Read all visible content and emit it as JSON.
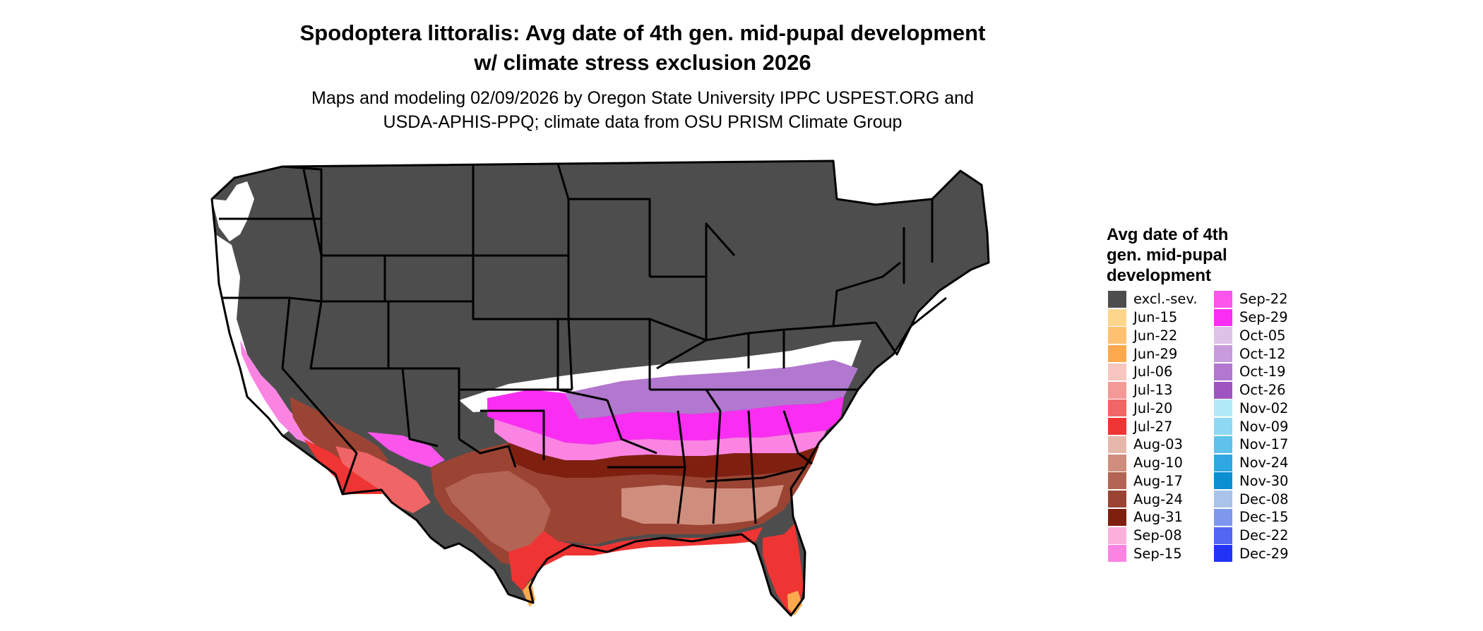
{
  "header": {
    "title_line1": "Spodoptera littoralis: Avg date of 4th gen. mid-pupal development",
    "title_line2": "w/ climate stress exclusion 2026",
    "subtitle_line1": "Maps and modeling 02/09/2026 by Oregon State University IPPC USPEST.ORG and",
    "subtitle_line2": "USDA-APHIS-PPQ; climate data from OSU PRISM Climate Group"
  },
  "legend": {
    "title_line1": "Avg date of 4th",
    "title_line2": "gen. mid-pupal",
    "title_line3": "development",
    "col1": [
      {
        "label": "excl.-sev.",
        "color": "#4d4d4d"
      },
      {
        "label": "Jun-15",
        "color": "#fdd68c"
      },
      {
        "label": "Jun-22",
        "color": "#fdc170"
      },
      {
        "label": "Jun-29",
        "color": "#fca94e"
      },
      {
        "label": "Jul-06",
        "color": "#f8c6c0"
      },
      {
        "label": "Jul-13",
        "color": "#f39a98"
      },
      {
        "label": "Jul-20",
        "color": "#f06565"
      },
      {
        "label": "Jul-27",
        "color": "#ef3434"
      },
      {
        "label": "Aug-03",
        "color": "#e6b8ab"
      },
      {
        "label": "Aug-10",
        "color": "#cf8d7d"
      },
      {
        "label": "Aug-17",
        "color": "#b36454"
      },
      {
        "label": "Aug-24",
        "color": "#9b4433"
      },
      {
        "label": "Aug-31",
        "color": "#7f1f10"
      },
      {
        "label": "Sep-08",
        "color": "#fbb0dc"
      },
      {
        "label": "Sep-15",
        "color": "#fb84e2"
      }
    ],
    "col2": [
      {
        "label": "Sep-22",
        "color": "#fb55ec"
      },
      {
        "label": "Sep-29",
        "color": "#fa2ef2"
      },
      {
        "label": "Oct-05",
        "color": "#dfc2e8"
      },
      {
        "label": "Oct-12",
        "color": "#c89bdc"
      },
      {
        "label": "Oct-19",
        "color": "#b277cf"
      },
      {
        "label": "Oct-26",
        "color": "#9f55c1"
      },
      {
        "label": "Nov-02",
        "color": "#b3eaf9"
      },
      {
        "label": "Nov-09",
        "color": "#8fd8f3"
      },
      {
        "label": "Nov-17",
        "color": "#5fc2ec"
      },
      {
        "label": "Nov-24",
        "color": "#2fa7e0"
      },
      {
        "label": "Nov-30",
        "color": "#0b8fd2"
      },
      {
        "label": "Dec-08",
        "color": "#a9c3ea"
      },
      {
        "label": "Dec-15",
        "color": "#7f98ed"
      },
      {
        "label": "Dec-22",
        "color": "#5366f2"
      },
      {
        "label": "Dec-29",
        "color": "#2233f7"
      }
    ]
  }
}
